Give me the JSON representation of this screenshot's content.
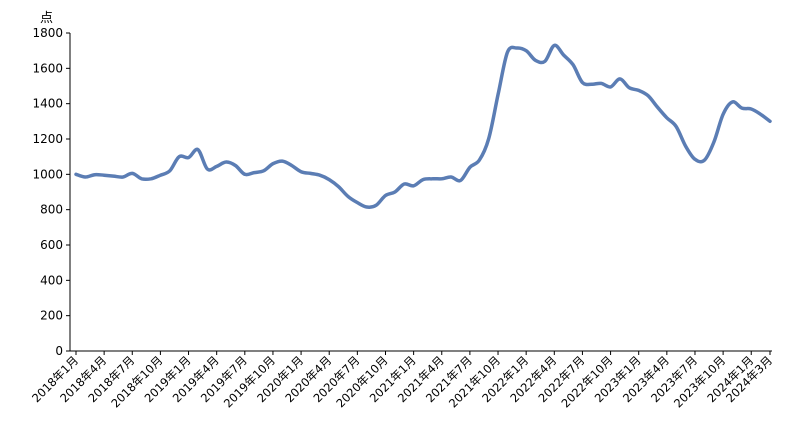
{
  "chart_data": {
    "type": "line",
    "title": "",
    "xlabel": "",
    "ylabel": "点",
    "ylim": [
      0,
      1800
    ],
    "yticks": [
      0,
      200,
      400,
      600,
      800,
      1000,
      1200,
      1400,
      1600,
      1800
    ],
    "grid": false,
    "line_color": "#5b7db4",
    "xtick_labels": [
      "2018年1月",
      "2018年4月",
      "2018年7月",
      "2018年10月",
      "2019年1月",
      "2019年4月",
      "2019年7月",
      "2019年10月",
      "2020年1月",
      "2020年4月",
      "2020年7月",
      "2020年10月",
      "2021年1月",
      "2021年4月",
      "2021年7月",
      "2021年10月",
      "2022年1月",
      "2022年4月",
      "2022年7月",
      "2022年10月",
      "2023年1月",
      "2023年4月",
      "2023年7月",
      "2023年10月",
      "2024年1月",
      "2024年3月"
    ],
    "series": [
      {
        "values": [
          [
            0,
            1000
          ],
          [
            1,
            985
          ],
          [
            2,
            998
          ],
          [
            3,
            995
          ],
          [
            4,
            990
          ],
          [
            5,
            985
          ],
          [
            6,
            1005
          ],
          [
            7,
            975
          ],
          [
            8,
            975
          ],
          [
            9,
            995
          ],
          [
            10,
            1020
          ],
          [
            11,
            1100
          ],
          [
            12,
            1095
          ],
          [
            13,
            1140
          ],
          [
            14,
            1030
          ],
          [
            15,
            1045
          ],
          [
            16,
            1070
          ],
          [
            17,
            1050
          ],
          [
            18,
            1000
          ],
          [
            19,
            1010
          ],
          [
            20,
            1020
          ],
          [
            21,
            1060
          ],
          [
            22,
            1075
          ],
          [
            23,
            1050
          ],
          [
            24,
            1015
          ],
          [
            25,
            1005
          ],
          [
            26,
            995
          ],
          [
            27,
            970
          ],
          [
            28,
            930
          ],
          [
            29,
            875
          ],
          [
            30,
            840
          ],
          [
            31,
            815
          ],
          [
            32,
            825
          ],
          [
            33,
            880
          ],
          [
            34,
            900
          ],
          [
            35,
            945
          ],
          [
            36,
            935
          ],
          [
            37,
            970
          ],
          [
            38,
            975
          ],
          [
            39,
            975
          ],
          [
            40,
            985
          ],
          [
            41,
            965
          ],
          [
            42,
            1040
          ],
          [
            43,
            1080
          ],
          [
            44,
            1200
          ],
          [
            45,
            1450
          ],
          [
            46,
            1690
          ],
          [
            47,
            1715
          ],
          [
            48,
            1700
          ],
          [
            49,
            1645
          ],
          [
            50,
            1640
          ],
          [
            51,
            1730
          ],
          [
            52,
            1675
          ],
          [
            53,
            1620
          ],
          [
            54,
            1520
          ],
          [
            55,
            1510
          ],
          [
            56,
            1515
          ],
          [
            57,
            1495
          ],
          [
            58,
            1540
          ],
          [
            59,
            1490
          ],
          [
            60,
            1475
          ],
          [
            61,
            1445
          ],
          [
            62,
            1380
          ],
          [
            63,
            1320
          ],
          [
            64,
            1270
          ],
          [
            65,
            1160
          ],
          [
            66,
            1085
          ],
          [
            67,
            1080
          ],
          [
            68,
            1180
          ],
          [
            69,
            1340
          ],
          [
            70,
            1410
          ],
          [
            71,
            1375
          ],
          [
            72,
            1370
          ],
          [
            73,
            1340
          ],
          [
            74,
            1300
          ]
        ]
      }
    ]
  }
}
